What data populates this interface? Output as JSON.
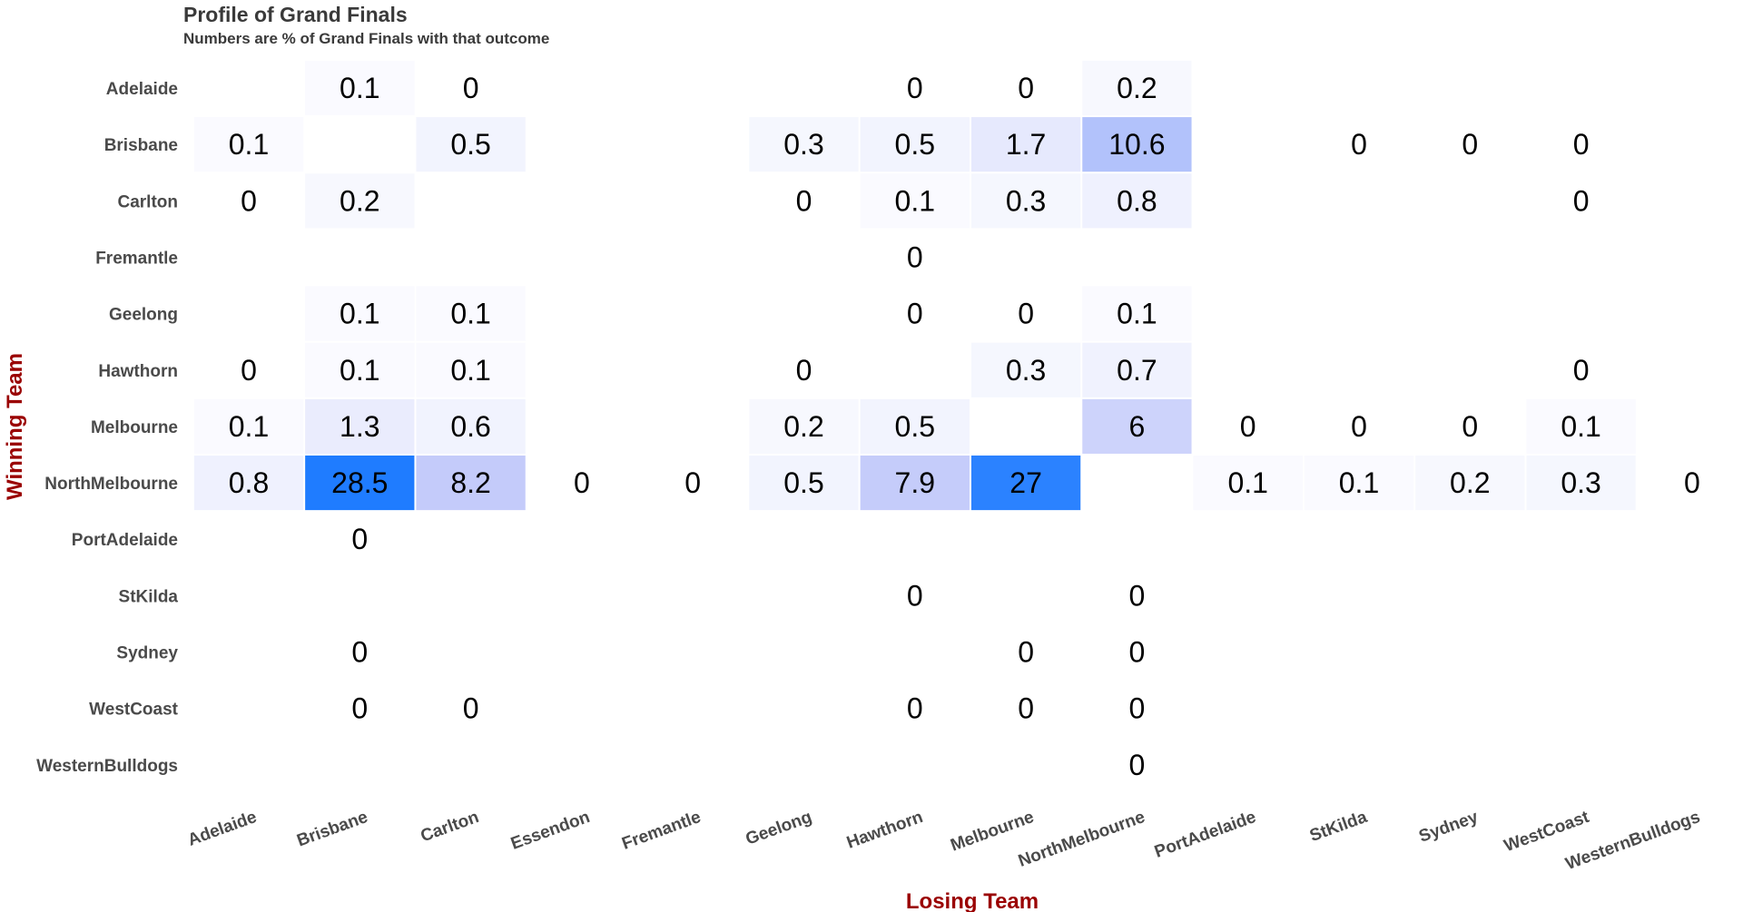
{
  "chart_data": {
    "type": "heatmap",
    "title": "Profile of Grand Finals",
    "subtitle": "Numbers are % of Grand Finals with that outcome",
    "xlabel": "Losing Team",
    "ylabel": "Winning Team",
    "rows": [
      "Adelaide",
      "Brisbane",
      "Carlton",
      "Fremantle",
      "Geelong",
      "Hawthorn",
      "Melbourne",
      "NorthMelbourne",
      "PortAdelaide",
      "StKilda",
      "Sydney",
      "WestCoast",
      "WesternBulldogs"
    ],
    "cols": [
      "Adelaide",
      "Brisbane",
      "Carlton",
      "Essendon",
      "Fremantle",
      "Geelong",
      "Hawthorn",
      "Melbourne",
      "NorthMelbourne",
      "PortAdelaide",
      "StKilda",
      "Sydney",
      "WestCoast",
      "WesternBulldogs"
    ],
    "cells": [
      {
        "winner": "Adelaide",
        "loser": "Brisbane",
        "value": 0.1,
        "label": "0.1"
      },
      {
        "winner": "Adelaide",
        "loser": "Carlton",
        "value": 0,
        "label": "0"
      },
      {
        "winner": "Adelaide",
        "loser": "Hawthorn",
        "value": 0,
        "label": "0"
      },
      {
        "winner": "Adelaide",
        "loser": "Melbourne",
        "value": 0,
        "label": "0"
      },
      {
        "winner": "Adelaide",
        "loser": "NorthMelbourne",
        "value": 0.2,
        "label": "0.2"
      },
      {
        "winner": "Brisbane",
        "loser": "Adelaide",
        "value": 0.1,
        "label": "0.1"
      },
      {
        "winner": "Brisbane",
        "loser": "Carlton",
        "value": 0.5,
        "label": "0.5"
      },
      {
        "winner": "Brisbane",
        "loser": "Geelong",
        "value": 0.3,
        "label": "0.3"
      },
      {
        "winner": "Brisbane",
        "loser": "Hawthorn",
        "value": 0.5,
        "label": "0.5"
      },
      {
        "winner": "Brisbane",
        "loser": "Melbourne",
        "value": 1.7,
        "label": "1.7"
      },
      {
        "winner": "Brisbane",
        "loser": "NorthMelbourne",
        "value": 10.6,
        "label": "10.6"
      },
      {
        "winner": "Brisbane",
        "loser": "StKilda",
        "value": 0,
        "label": "0"
      },
      {
        "winner": "Brisbane",
        "loser": "Sydney",
        "value": 0,
        "label": "0"
      },
      {
        "winner": "Brisbane",
        "loser": "WestCoast",
        "value": 0,
        "label": "0"
      },
      {
        "winner": "Carlton",
        "loser": "Adelaide",
        "value": 0,
        "label": "0"
      },
      {
        "winner": "Carlton",
        "loser": "Brisbane",
        "value": 0.2,
        "label": "0.2"
      },
      {
        "winner": "Carlton",
        "loser": "Geelong",
        "value": 0,
        "label": "0"
      },
      {
        "winner": "Carlton",
        "loser": "Hawthorn",
        "value": 0.1,
        "label": "0.1"
      },
      {
        "winner": "Carlton",
        "loser": "Melbourne",
        "value": 0.3,
        "label": "0.3"
      },
      {
        "winner": "Carlton",
        "loser": "NorthMelbourne",
        "value": 0.8,
        "label": "0.8"
      },
      {
        "winner": "Carlton",
        "loser": "WestCoast",
        "value": 0,
        "label": "0"
      },
      {
        "winner": "Fremantle",
        "loser": "Hawthorn",
        "value": 0,
        "label": "0"
      },
      {
        "winner": "Geelong",
        "loser": "Brisbane",
        "value": 0.1,
        "label": "0.1"
      },
      {
        "winner": "Geelong",
        "loser": "Carlton",
        "value": 0.1,
        "label": "0.1"
      },
      {
        "winner": "Geelong",
        "loser": "Hawthorn",
        "value": 0,
        "label": "0"
      },
      {
        "winner": "Geelong",
        "loser": "Melbourne",
        "value": 0,
        "label": "0"
      },
      {
        "winner": "Geelong",
        "loser": "NorthMelbourne",
        "value": 0.1,
        "label": "0.1"
      },
      {
        "winner": "Hawthorn",
        "loser": "Adelaide",
        "value": 0,
        "label": "0"
      },
      {
        "winner": "Hawthorn",
        "loser": "Brisbane",
        "value": 0.1,
        "label": "0.1"
      },
      {
        "winner": "Hawthorn",
        "loser": "Carlton",
        "value": 0.1,
        "label": "0.1"
      },
      {
        "winner": "Hawthorn",
        "loser": "Geelong",
        "value": 0,
        "label": "0"
      },
      {
        "winner": "Hawthorn",
        "loser": "Melbourne",
        "value": 0.3,
        "label": "0.3"
      },
      {
        "winner": "Hawthorn",
        "loser": "NorthMelbourne",
        "value": 0.7,
        "label": "0.7"
      },
      {
        "winner": "Hawthorn",
        "loser": "WestCoast",
        "value": 0,
        "label": "0"
      },
      {
        "winner": "Melbourne",
        "loser": "Adelaide",
        "value": 0.1,
        "label": "0.1"
      },
      {
        "winner": "Melbourne",
        "loser": "Brisbane",
        "value": 1.3,
        "label": "1.3"
      },
      {
        "winner": "Melbourne",
        "loser": "Carlton",
        "value": 0.6,
        "label": "0.6"
      },
      {
        "winner": "Melbourne",
        "loser": "Geelong",
        "value": 0.2,
        "label": "0.2"
      },
      {
        "winner": "Melbourne",
        "loser": "Hawthorn",
        "value": 0.5,
        "label": "0.5"
      },
      {
        "winner": "Melbourne",
        "loser": "NorthMelbourne",
        "value": 6,
        "label": "6"
      },
      {
        "winner": "Melbourne",
        "loser": "PortAdelaide",
        "value": 0,
        "label": "0"
      },
      {
        "winner": "Melbourne",
        "loser": "StKilda",
        "value": 0,
        "label": "0"
      },
      {
        "winner": "Melbourne",
        "loser": "Sydney",
        "value": 0,
        "label": "0"
      },
      {
        "winner": "Melbourne",
        "loser": "WestCoast",
        "value": 0.1,
        "label": "0.1"
      },
      {
        "winner": "NorthMelbourne",
        "loser": "Adelaide",
        "value": 0.8,
        "label": "0.8"
      },
      {
        "winner": "NorthMelbourne",
        "loser": "Brisbane",
        "value": 28.5,
        "label": "28.5"
      },
      {
        "winner": "NorthMelbourne",
        "loser": "Carlton",
        "value": 8.2,
        "label": "8.2"
      },
      {
        "winner": "NorthMelbourne",
        "loser": "Essendon",
        "value": 0,
        "label": "0"
      },
      {
        "winner": "NorthMelbourne",
        "loser": "Fremantle",
        "value": 0,
        "label": "0"
      },
      {
        "winner": "NorthMelbourne",
        "loser": "Geelong",
        "value": 0.5,
        "label": "0.5"
      },
      {
        "winner": "NorthMelbourne",
        "loser": "Hawthorn",
        "value": 7.9,
        "label": "7.9"
      },
      {
        "winner": "NorthMelbourne",
        "loser": "Melbourne",
        "value": 27,
        "label": "27"
      },
      {
        "winner": "NorthMelbourne",
        "loser": "PortAdelaide",
        "value": 0.1,
        "label": "0.1"
      },
      {
        "winner": "NorthMelbourne",
        "loser": "StKilda",
        "value": 0.1,
        "label": "0.1"
      },
      {
        "winner": "NorthMelbourne",
        "loser": "Sydney",
        "value": 0.2,
        "label": "0.2"
      },
      {
        "winner": "NorthMelbourne",
        "loser": "WestCoast",
        "value": 0.3,
        "label": "0.3"
      },
      {
        "winner": "NorthMelbourne",
        "loser": "WesternBulldogs",
        "value": 0,
        "label": "0"
      },
      {
        "winner": "PortAdelaide",
        "loser": "Brisbane",
        "value": 0,
        "label": "0"
      },
      {
        "winner": "StKilda",
        "loser": "Hawthorn",
        "value": 0,
        "label": "0"
      },
      {
        "winner": "StKilda",
        "loser": "NorthMelbourne",
        "value": 0,
        "label": "0"
      },
      {
        "winner": "Sydney",
        "loser": "Brisbane",
        "value": 0,
        "label": "0"
      },
      {
        "winner": "Sydney",
        "loser": "Melbourne",
        "value": 0,
        "label": "0"
      },
      {
        "winner": "Sydney",
        "loser": "NorthMelbourne",
        "value": 0,
        "label": "0"
      },
      {
        "winner": "WestCoast",
        "loser": "Brisbane",
        "value": 0,
        "label": "0"
      },
      {
        "winner": "WestCoast",
        "loser": "Carlton",
        "value": 0,
        "label": "0"
      },
      {
        "winner": "WestCoast",
        "loser": "Hawthorn",
        "value": 0,
        "label": "0"
      },
      {
        "winner": "WestCoast",
        "loser": "Melbourne",
        "value": 0,
        "label": "0"
      },
      {
        "winner": "WestCoast",
        "loser": "NorthMelbourne",
        "value": 0,
        "label": "0"
      },
      {
        "winner": "WesternBulldogs",
        "loser": "NorthMelbourne",
        "value": 0,
        "label": "0"
      }
    ],
    "color_scale": {
      "low": "#ffffff",
      "mid": "#c3cafa",
      "high": "#1f7cff",
      "max": 28.5
    },
    "label_color": "#9a0000",
    "grid": false,
    "legend": "none"
  }
}
